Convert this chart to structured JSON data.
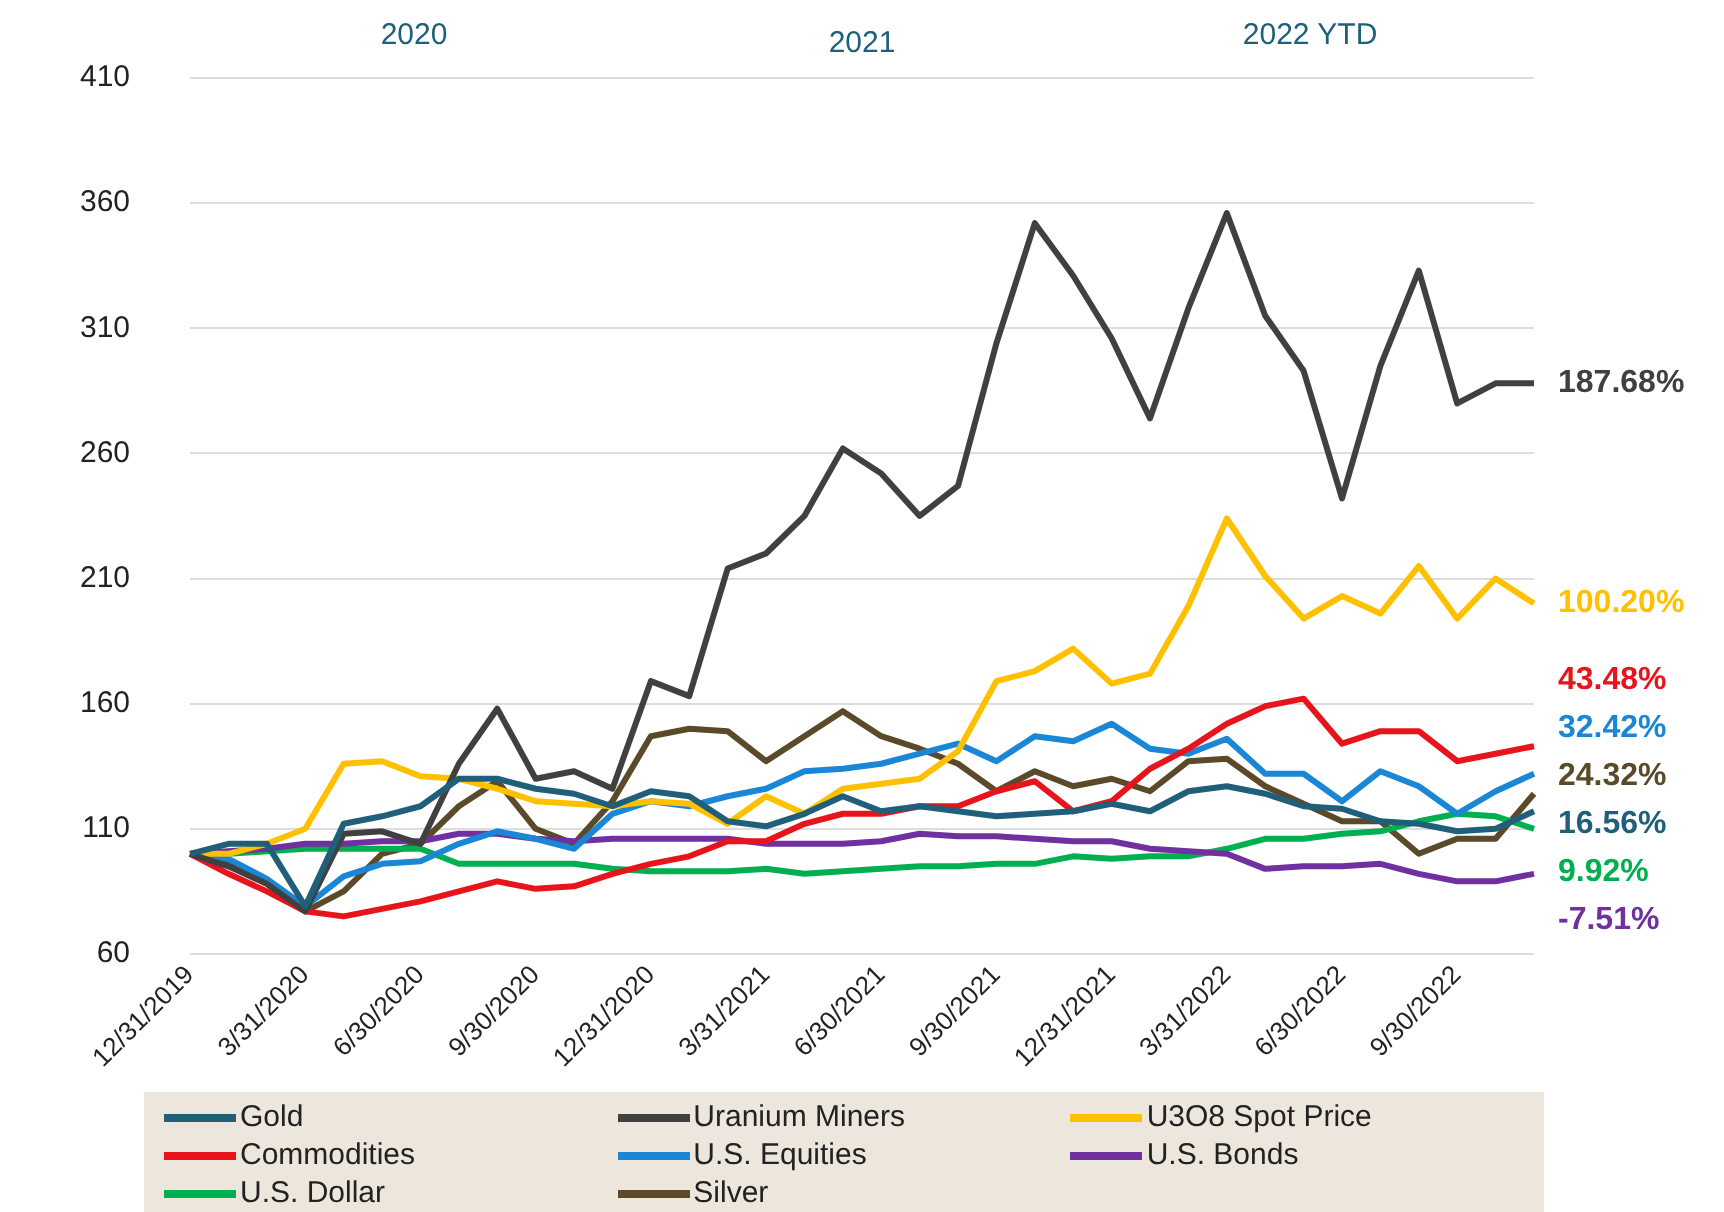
{
  "chart_data": {
    "type": "line",
    "annotations": [
      "2020",
      "2021",
      "2022 YTD",
      "187.68%",
      "100.20%",
      "43.48%",
      "32.42%",
      "24.32%",
      "16.56%",
      "9.92%",
      "-7.51%"
    ],
    "categories": [
      "12/31/2019",
      null,
      null,
      "3/31/2020",
      null,
      null,
      "6/30/2020",
      null,
      null,
      "9/30/2020",
      null,
      null,
      "12/31/2020",
      null,
      null,
      "3/31/2021",
      null,
      null,
      "6/30/2021",
      null,
      null,
      "9/30/2021",
      null,
      null,
      "12/31/2021",
      null,
      null,
      "3/31/2022",
      null,
      null,
      "6/30/2022",
      null,
      null,
      "9/30/2022",
      null,
      null
    ],
    "ylim": [
      60,
      410
    ],
    "yticks": [
      60,
      110,
      160,
      210,
      260,
      310,
      360,
      410
    ],
    "grid": "y",
    "legend": "bottom",
    "marker": "none",
    "line_style": "solid",
    "series": [
      {
        "name": "Gold",
        "color": "#1f5f7a",
        "values": [
          100,
          104,
          104,
          79,
          112,
          115,
          119,
          130,
          130,
          126,
          124,
          119,
          125,
          123,
          113,
          111,
          116,
          123,
          117,
          119,
          117,
          115,
          116,
          117,
          120,
          117,
          125,
          127,
          124,
          119,
          118,
          113,
          112,
          109,
          110,
          117
        ]
      },
      {
        "name": "Uranium Miners",
        "color": "#404040",
        "values": [
          100,
          95,
          88,
          77,
          108,
          109,
          104,
          136,
          158,
          130,
          133,
          126,
          169,
          163,
          214,
          220,
          235,
          262,
          252,
          235,
          247,
          304,
          352,
          331,
          306,
          274,
          318,
          356,
          315,
          293,
          242,
          295,
          333,
          280,
          288,
          288
        ]
      },
      {
        "name": "U3O8 Spot Price",
        "color": "#ffc000",
        "values": [
          100,
          100,
          104,
          110,
          136,
          137,
          131,
          130,
          126,
          121,
          120,
          119,
          121,
          120,
          112,
          123,
          116,
          126,
          128,
          130,
          141,
          169,
          173,
          182,
          168,
          172,
          199,
          234,
          211,
          194,
          203,
          196,
          215,
          194,
          210,
          200
        ]
      },
      {
        "name": "Commodities",
        "color": "#e8141c",
        "values": [
          100,
          92,
          85,
          77,
          75,
          78,
          81,
          85,
          89,
          86,
          87,
          92,
          96,
          99,
          105,
          105,
          112,
          116,
          116,
          119,
          119,
          125,
          129,
          117,
          121,
          134,
          142,
          152,
          159,
          162,
          144,
          149,
          149,
          137,
          140,
          143
        ]
      },
      {
        "name": "U.S. Equities",
        "color": "#1a86d6",
        "values": [
          100,
          98,
          90,
          79,
          91,
          96,
          97,
          104,
          109,
          106,
          102,
          116,
          121,
          119,
          123,
          126,
          133,
          134,
          136,
          140,
          144,
          137,
          147,
          145,
          152,
          142,
          140,
          146,
          132,
          132,
          121,
          133,
          127,
          116,
          125,
          132
        ]
      },
      {
        "name": "U.S. Bonds",
        "color": "#7030a0",
        "values": [
          100,
          101,
          102,
          104,
          104,
          105,
          105,
          108,
          108,
          106,
          105,
          106,
          106,
          106,
          106,
          104,
          104,
          104,
          105,
          108,
          107,
          107,
          106,
          105,
          105,
          102,
          101,
          100,
          94,
          95,
          95,
          96,
          92,
          89,
          89,
          92
        ]
      },
      {
        "name": "U.S. Dollar",
        "color": "#00b050",
        "values": [
          100,
          100,
          101,
          102,
          102,
          102,
          102,
          96,
          96,
          96,
          96,
          94,
          93,
          93,
          93,
          94,
          92,
          93,
          94,
          95,
          95,
          96,
          96,
          99,
          98,
          99,
          99,
          102,
          106,
          106,
          108,
          109,
          113,
          116,
          115,
          110
        ]
      },
      {
        "name": "Silver",
        "color": "#5a4a2a",
        "values": [
          100,
          96,
          88,
          77,
          85,
          100,
          104,
          119,
          129,
          110,
          104,
          121,
          147,
          150,
          149,
          137,
          147,
          157,
          147,
          142,
          136,
          125,
          133,
          127,
          130,
          125,
          137,
          138,
          127,
          120,
          113,
          113,
          100,
          106,
          106,
          124
        ]
      }
    ]
  }
}
